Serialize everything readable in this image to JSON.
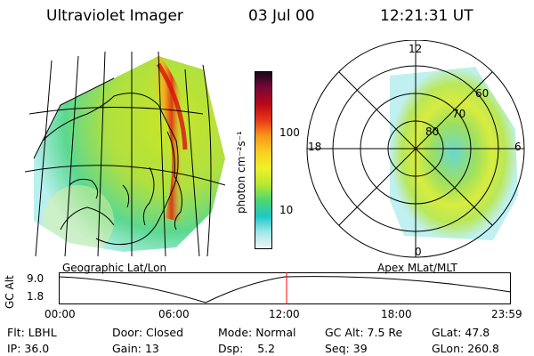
{
  "header": {
    "title": "Ultraviolet Imager",
    "date": "03 Jul 00",
    "time": "12:21:31 UT"
  },
  "colorbar": {
    "label": "photon cm⁻²s⁻¹",
    "ticks": [
      "100",
      "10"
    ],
    "stops": [
      "#f4f4f4",
      "#a0e8e8",
      "#1ec8c8",
      "#4cd870",
      "#b8e830",
      "#f0f028",
      "#f8d020",
      "#f89818",
      "#e83818",
      "#b80818",
      "#780838",
      "#180818"
    ]
  },
  "geo_panel": {
    "caption": "Geographic Lat/Lon"
  },
  "polar_panel": {
    "caption": "Apex MLat/MLT",
    "mlt_labels": {
      "top": "12",
      "left": "18",
      "right": "6",
      "bottom": "0"
    },
    "lat_labels": [
      "60",
      "70",
      "80"
    ]
  },
  "altitude_plot": {
    "ylabel": "GC Alt",
    "yticks": [
      "9.0",
      "1.8"
    ],
    "xticks": [
      "00:00",
      "06:00",
      "12:00",
      "18:00",
      "23:59"
    ],
    "marker_time": "12:21:31",
    "line_color": "#000000",
    "marker_color": "#ff0000"
  },
  "info": {
    "row1": [
      {
        "key": "Flt:",
        "value": "LBHL"
      },
      {
        "key": "Door:",
        "value": "Closed"
      },
      {
        "key": "Mode:",
        "value": "Normal"
      },
      {
        "key": "GC Alt:",
        "value": "7.5 Re"
      },
      {
        "key": "GLat:",
        "value": "47.8"
      }
    ],
    "row2": [
      {
        "key": "IP:",
        "value": "36.0"
      },
      {
        "key": "Gain:",
        "value": "13"
      },
      {
        "key": "Dsp:",
        "value": "5.2"
      },
      {
        "key": "Seq:",
        "value": "39"
      },
      {
        "key": "GLon:",
        "value": "260.8"
      }
    ]
  }
}
